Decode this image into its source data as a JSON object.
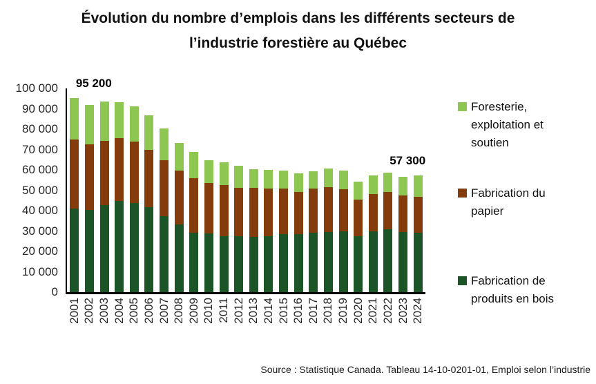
{
  "title": {
    "line1": "Évolution du nombre d’emplois dans les différents secteurs de",
    "line2": "l’industrie forestière au Québec"
  },
  "source": "Source : Statistique Canada. Tableau 14-10-0201-01, Emploi selon l’industrie",
  "chart_data": {
    "type": "bar",
    "stacked": true,
    "title": "Évolution du nombre d’emplois dans les différents secteurs de l’industrie forestière au Québec",
    "title_lines": [
      "Évolution du nombre d’emplois dans les différents secteurs de",
      "l’industrie forestière au Québec"
    ],
    "xlabel": "",
    "ylabel": "",
    "ylim": [
      0,
      100000
    ],
    "grid": false,
    "legend_position": "right",
    "y_ticks": [
      "100 000",
      "90 000",
      "80 000",
      "70 000",
      "60 000",
      "50 000",
      "40 000",
      "30 000",
      "20 000",
      "10 000",
      "0"
    ],
    "categories": [
      "2001",
      "2002",
      "2003",
      "2004",
      "2005",
      "2006",
      "2007",
      "2008",
      "2009",
      "2010",
      "2011",
      "2012",
      "2013",
      "2014",
      "2015",
      "2016",
      "2017",
      "2018",
      "2019",
      "2020",
      "2021",
      "2022",
      "2023",
      "2024"
    ],
    "series": [
      {
        "name": "Fabrication de produits en bois",
        "color": "#1A5427",
        "values": [
          41000,
          40500,
          42800,
          44900,
          43800,
          41600,
          37400,
          33200,
          29000,
          28700,
          27300,
          27500,
          27000,
          27300,
          28400,
          28400,
          29000,
          29600,
          29800,
          27300,
          29800,
          30700,
          29600,
          29000
        ]
      },
      {
        "name": "Fabrication du papier",
        "color": "#843C0C",
        "values": [
          34000,
          31900,
          31600,
          30600,
          30200,
          28100,
          27300,
          26300,
          27100,
          24800,
          25400,
          23700,
          24300,
          23400,
          22300,
          20600,
          21900,
          21900,
          20700,
          18100,
          18400,
          18500,
          17700,
          17700
        ]
      },
      {
        "name": "Foresterie, exploitation et soutien",
        "color": "#8DC751",
        "values": [
          20200,
          19600,
          19000,
          17600,
          17300,
          17100,
          15700,
          13800,
          12700,
          11300,
          11000,
          10800,
          9200,
          9200,
          9000,
          9300,
          8600,
          9200,
          9000,
          8900,
          9000,
          9400,
          9300,
          10600
        ]
      }
    ],
    "annotations": [
      {
        "text": "95 200",
        "category": "2001"
      },
      {
        "text": "57 300",
        "category": "2024"
      }
    ]
  }
}
